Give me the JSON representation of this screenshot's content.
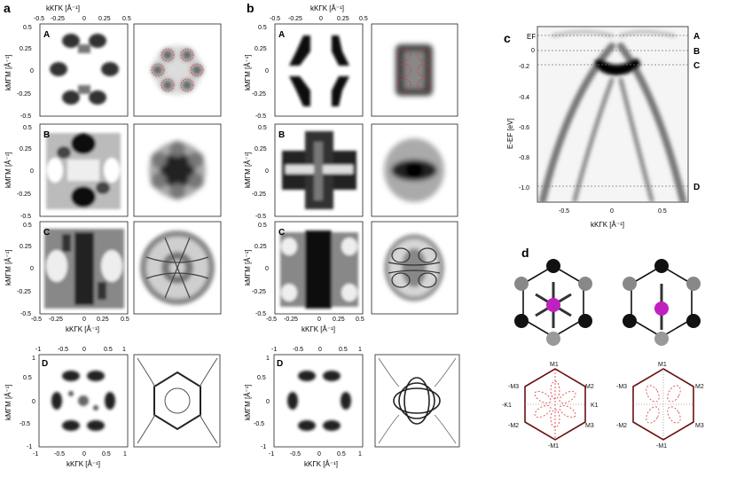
{
  "panels": {
    "a": {
      "letter": "a",
      "rows": [
        {
          "label": "A"
        },
        {
          "label": "B"
        },
        {
          "label": "C"
        },
        {
          "label": "D"
        }
      ],
      "xlabel_top": "kKΓK [Å⁻¹]",
      "xlabel_bottom": "kKΓK [Å⁻¹]",
      "xlabel_d": "kKΓK [Å⁻¹]",
      "ylabel": "kMΓM [Å⁻¹]",
      "ticks_small": [
        "-0.5",
        "-0.25",
        "0",
        "0.25",
        "0.5"
      ],
      "ticks_y_small": [
        "0.5",
        "0.25",
        "0",
        "-0.25",
        "-0.5"
      ],
      "ticks_d": [
        "-1",
        "-0.5",
        "0",
        "0.5",
        "1"
      ],
      "ticks_y_d": [
        "1",
        "0.5",
        "0",
        "-0.5",
        "-1"
      ]
    },
    "b": {
      "letter": "b",
      "rows": [
        {
          "label": "A"
        },
        {
          "label": "B"
        },
        {
          "label": "C"
        },
        {
          "label": "D"
        }
      ],
      "xlabel_top": "kKΓK [Å⁻¹]",
      "xlabel_bottom": "kKΓK [Å⁻¹]",
      "xlabel_d": "kKΓK [Å⁻¹]",
      "ylabel": "kMΓM [Å⁻¹]",
      "ticks_small": [
        "-0.5",
        "-0.25",
        "0",
        "0.25",
        "0.5"
      ],
      "ticks_y_small": [
        "0.5",
        "0.25",
        "0",
        "-0.25",
        "-0.5"
      ],
      "ticks_d": [
        "-1",
        "-0.5",
        "0",
        "0.5",
        "1"
      ],
      "ticks_y_d": [
        "1",
        "0.5",
        "0",
        "-0.5",
        "-1"
      ]
    },
    "c": {
      "letter": "c",
      "ylabel": "E-EF [eV]",
      "xlabel": "kKΓK [Å⁻¹]",
      "yticks": [
        "-0.2",
        "-0.4",
        "-0.6",
        "-0.8",
        "-1.0"
      ],
      "yzero": "0",
      "xticks": [
        "-0.5",
        "0",
        "0.5"
      ],
      "ef_label": "EF",
      "levels": [
        "A",
        "B",
        "C",
        "D"
      ]
    },
    "d": {
      "letter": "d",
      "bz_labels": [
        "M1",
        "M2",
        "K1",
        "M3",
        "-M1",
        "-M2",
        "-K1",
        "-M3"
      ]
    }
  },
  "chart_data": {
    "type": "heatmap",
    "title": "",
    "xlabel": "kKΓK [Å⁻¹]",
    "ylabel": "E-EF [eV]",
    "xlim": [
      -0.65,
      0.65
    ],
    "ylim": [
      -1.05,
      0.0
    ],
    "level_energies": [
      {
        "name": "EF",
        "value": 0.0
      },
      {
        "name": "A",
        "value": -0.05
      },
      {
        "name": "B",
        "value": -0.11
      },
      {
        "name": "C",
        "value": -0.19
      },
      {
        "name": "D",
        "value": -1.0
      }
    ]
  }
}
